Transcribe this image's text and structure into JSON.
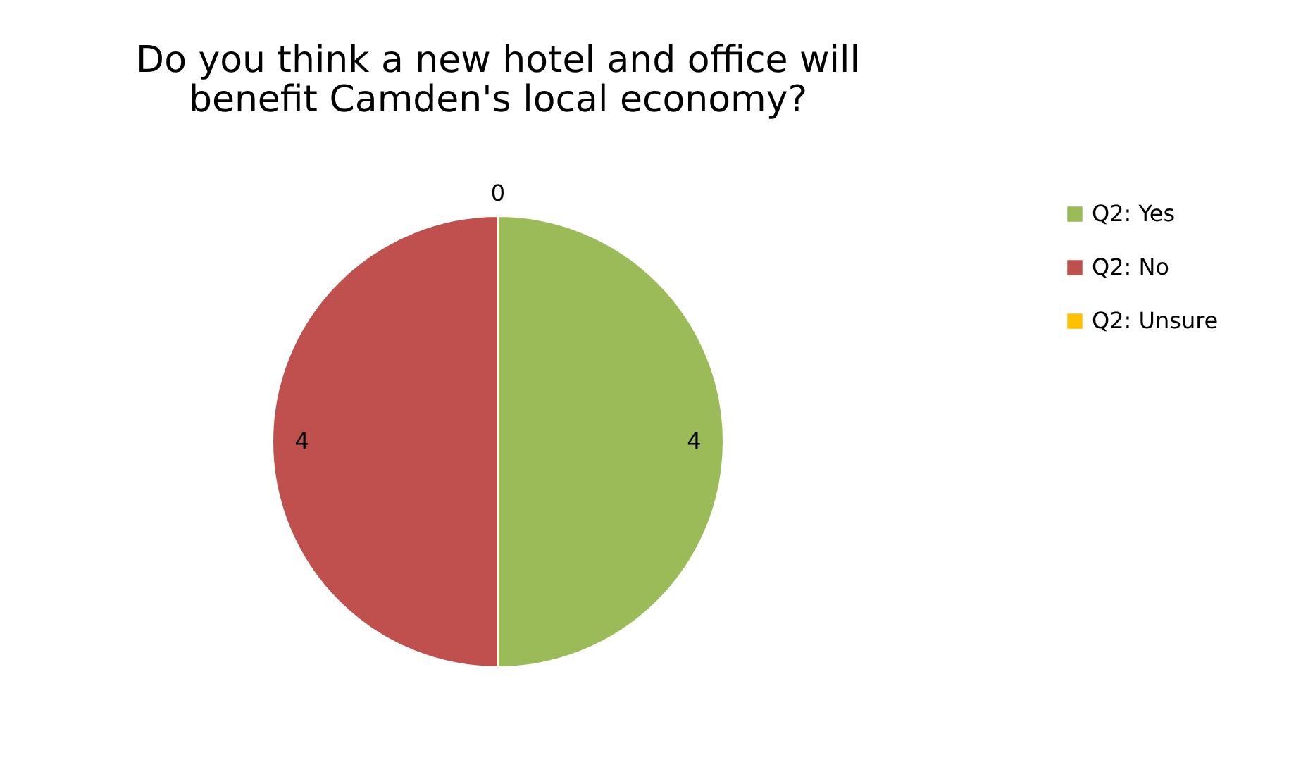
{
  "chart_data": {
    "type": "pie",
    "title": "Do you think a new hotel and office will benefit Camden's local economy?",
    "categories": [
      "Q2: Yes",
      "Q2: No",
      "Q2: Unsure"
    ],
    "values": [
      4,
      4,
      0
    ],
    "colors": [
      "#9bbb59",
      "#c0504d",
      "#ffc000"
    ],
    "value_labels": [
      "4",
      "4",
      "0"
    ],
    "legend": "right"
  }
}
